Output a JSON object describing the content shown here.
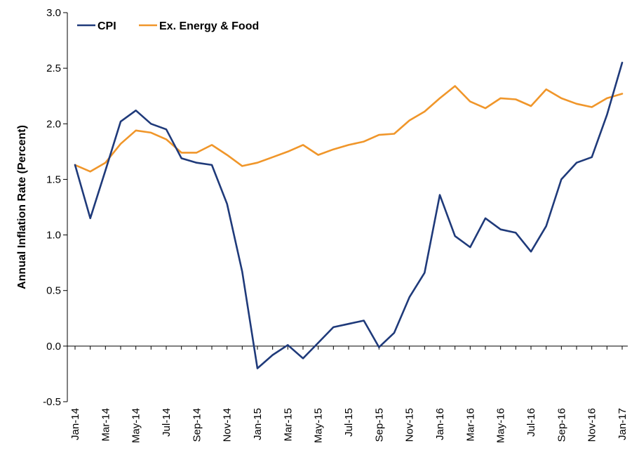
{
  "chart_data": {
    "type": "line",
    "title": "",
    "xlabel": "",
    "ylabel": "Annual Inflation Rate (Percent)",
    "ylim": [
      -0.5,
      3.0
    ],
    "yticks": [
      "-0.5",
      "0.0",
      "0.5",
      "1.0",
      "1.5",
      "2.0",
      "2.5",
      "3.0"
    ],
    "ytick_values": [
      -0.5,
      0.0,
      0.5,
      1.0,
      1.5,
      2.0,
      2.5,
      3.0
    ],
    "x": [
      "Jan-14",
      "Feb-14",
      "Mar-14",
      "Apr-14",
      "May-14",
      "Jun-14",
      "Jul-14",
      "Aug-14",
      "Sep-14",
      "Oct-14",
      "Nov-14",
      "Dec-14",
      "Jan-15",
      "Feb-15",
      "Mar-15",
      "Apr-15",
      "May-15",
      "Jun-15",
      "Jul-15",
      "Aug-15",
      "Sep-15",
      "Oct-15",
      "Nov-15",
      "Dec-15",
      "Jan-16",
      "Feb-16",
      "Mar-16",
      "Apr-16",
      "May-16",
      "Jun-16",
      "Jul-16",
      "Aug-16",
      "Sep-16",
      "Oct-16",
      "Nov-16",
      "Dec-16",
      "Jan-17"
    ],
    "xtick_labels": [
      "Jan-14",
      "Mar-14",
      "May-14",
      "Jul-14",
      "Sep-14",
      "Nov-14",
      "Jan-15",
      "Mar-15",
      "May-15",
      "Jul-15",
      "Sep-15",
      "Nov-15",
      "Jan-16",
      "Mar-16",
      "May-16",
      "Jul-16",
      "Sep-16",
      "Nov-16",
      "Jan-17"
    ],
    "grid": false,
    "legend_position": "top-left",
    "series": [
      {
        "name": "CPI",
        "color": "#1f3a7a",
        "values": [
          1.63,
          1.15,
          1.58,
          2.02,
          2.12,
          2.0,
          1.95,
          1.69,
          1.65,
          1.63,
          1.28,
          0.67,
          -0.2,
          -0.08,
          0.01,
          -0.11,
          0.03,
          0.17,
          0.2,
          0.23,
          -0.01,
          0.12,
          0.44,
          0.66,
          1.36,
          0.99,
          0.89,
          1.15,
          1.05,
          1.02,
          0.85,
          1.08,
          1.5,
          1.65,
          1.7,
          2.08,
          2.55
        ]
      },
      {
        "name": "Ex. Energy & Food",
        "color": "#f0962a",
        "values": [
          1.63,
          1.57,
          1.65,
          1.82,
          1.94,
          1.92,
          1.86,
          1.74,
          1.74,
          1.81,
          1.72,
          1.62,
          1.65,
          1.7,
          1.75,
          1.81,
          1.72,
          1.77,
          1.81,
          1.84,
          1.9,
          1.91,
          2.03,
          2.11,
          2.23,
          2.34,
          2.2,
          2.14,
          2.23,
          2.22,
          2.16,
          2.31,
          2.23,
          2.18,
          2.15,
          2.23,
          2.27
        ]
      }
    ]
  }
}
